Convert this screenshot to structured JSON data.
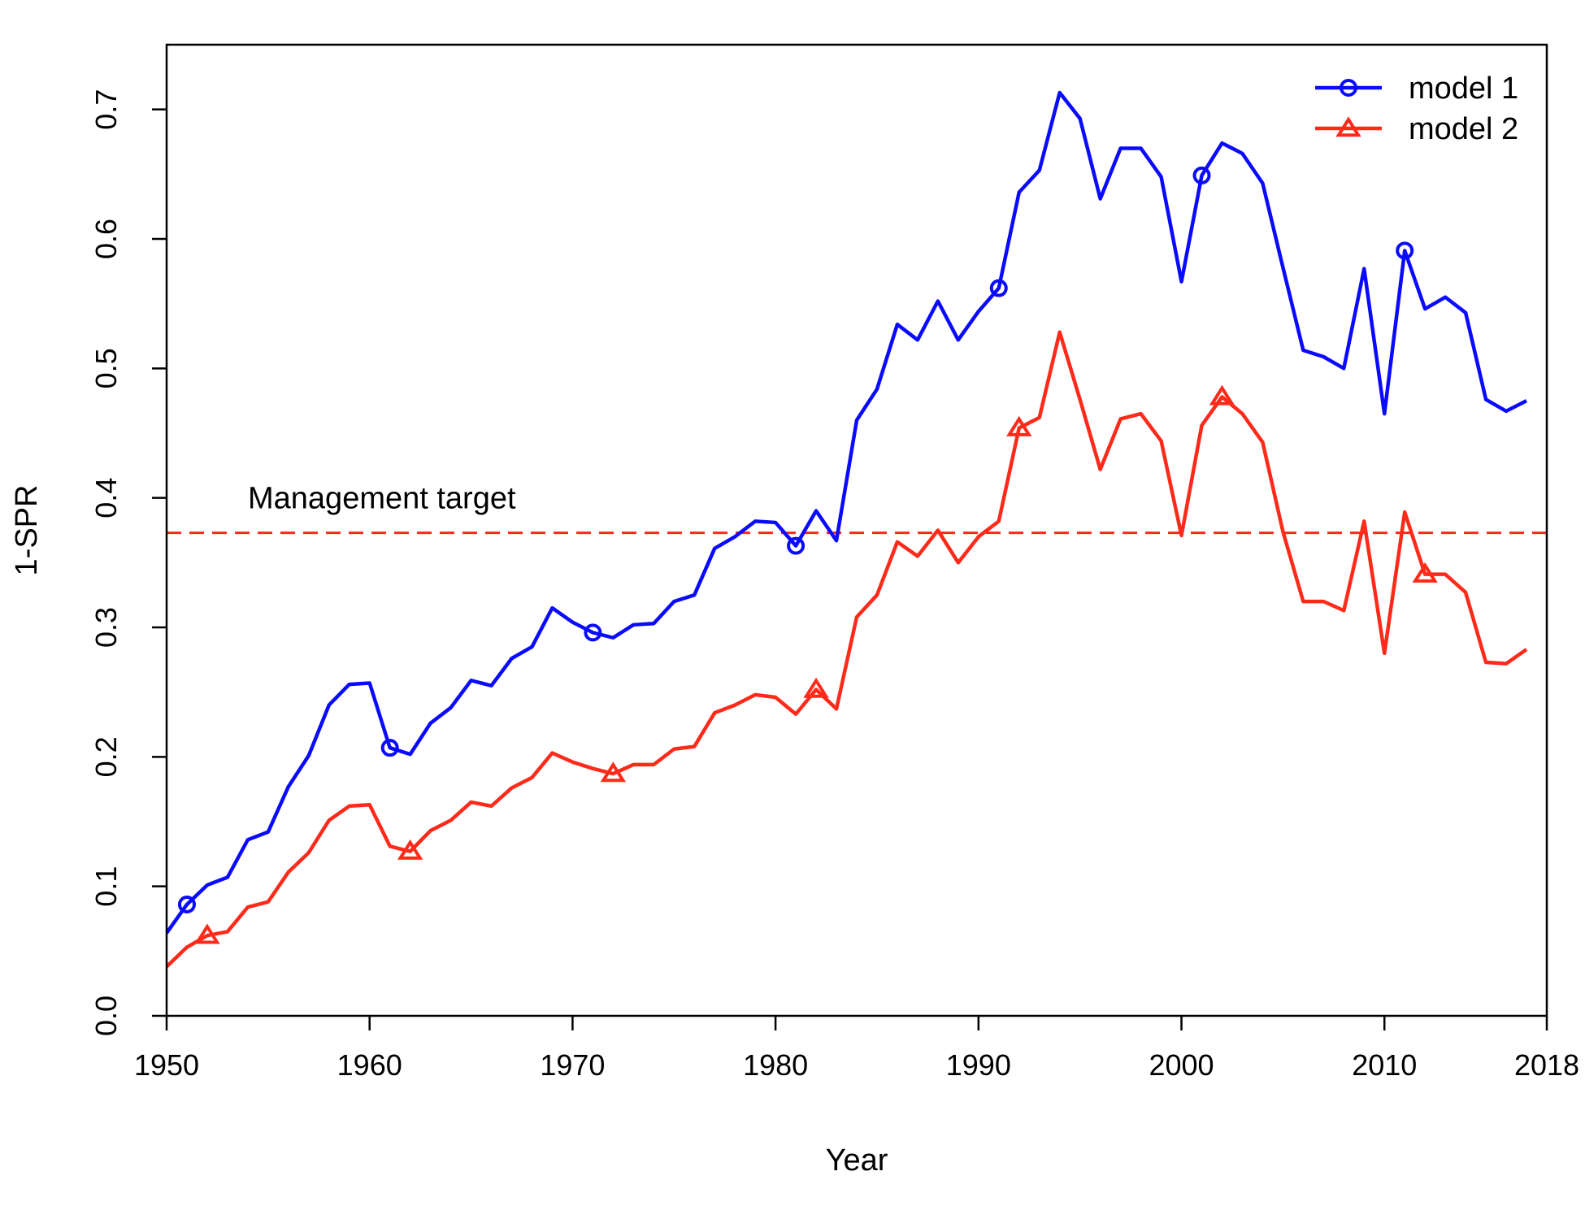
{
  "chart_data": {
    "type": "line",
    "title": "",
    "xlabel": "Year",
    "ylabel": "1-SPR",
    "xlim": [
      1950,
      2018
    ],
    "ylim": [
      0.0,
      0.75
    ],
    "x_ticks": [
      1950,
      1960,
      1970,
      1980,
      1990,
      2000,
      2010,
      2018
    ],
    "x_tick_labels": [
      "1950",
      "1960",
      "1970",
      "1980",
      "1990",
      "2000",
      "2010",
      "2018"
    ],
    "y_ticks": [
      0.0,
      0.1,
      0.2,
      0.3,
      0.4,
      0.5,
      0.6,
      0.7
    ],
    "y_tick_labels": [
      "0.0",
      "0.1",
      "0.2",
      "0.3",
      "0.4",
      "0.5",
      "0.6",
      "0.7"
    ],
    "grid": false,
    "legend": {
      "position": "top-right"
    },
    "reference_line": {
      "y": 0.373,
      "style": "dashed",
      "color": "#ff2a1a",
      "label": "Management target"
    },
    "series": [
      {
        "name": "model 1",
        "color": "#0a0aff",
        "marker": "circle",
        "x": [
          1950,
          1951,
          1952,
          1953,
          1954,
          1955,
          1956,
          1957,
          1958,
          1959,
          1960,
          1961,
          1962,
          1963,
          1964,
          1965,
          1966,
          1967,
          1968,
          1969,
          1970,
          1971,
          1972,
          1973,
          1974,
          1975,
          1976,
          1977,
          1978,
          1979,
          1980,
          1981,
          1982,
          1983,
          1984,
          1985,
          1986,
          1987,
          1988,
          1989,
          1990,
          1991,
          1992,
          1993,
          1994,
          1995,
          1996,
          1997,
          1998,
          1999,
          2000,
          2001,
          2002,
          2003,
          2004,
          2005,
          2006,
          2007,
          2008,
          2009,
          2010,
          2011,
          2012,
          2013,
          2014,
          2015,
          2016,
          2017
        ],
        "y": [
          0.064,
          0.086,
          0.101,
          0.107,
          0.136,
          0.142,
          0.177,
          0.201,
          0.24,
          0.256,
          0.257,
          0.207,
          0.202,
          0.226,
          0.238,
          0.259,
          0.255,
          0.276,
          0.285,
          0.315,
          0.304,
          0.296,
          0.292,
          0.302,
          0.303,
          0.32,
          0.325,
          0.361,
          0.37,
          0.382,
          0.381,
          0.363,
          0.39,
          0.367,
          0.46,
          0.484,
          0.534,
          0.522,
          0.552,
          0.522,
          0.544,
          0.562,
          0.636,
          0.653,
          0.713,
          0.693,
          0.631,
          0.67,
          0.67,
          0.648,
          0.567,
          0.649,
          0.674,
          0.666,
          0.643,
          0.578,
          0.514,
          0.509,
          0.5,
          0.577,
          0.465,
          0.591,
          0.546,
          0.555,
          0.543,
          0.476,
          0.467,
          0.475
        ],
        "marker_x": [
          1951,
          1961,
          1971,
          1981,
          1991,
          2001,
          2011
        ]
      },
      {
        "name": "model 2",
        "color": "#ff2a1a",
        "marker": "triangle",
        "x": [
          1950,
          1951,
          1952,
          1953,
          1954,
          1955,
          1956,
          1957,
          1958,
          1959,
          1960,
          1961,
          1962,
          1963,
          1964,
          1965,
          1966,
          1967,
          1968,
          1969,
          1970,
          1971,
          1972,
          1973,
          1974,
          1975,
          1976,
          1977,
          1978,
          1979,
          1980,
          1981,
          1982,
          1983,
          1984,
          1985,
          1986,
          1987,
          1988,
          1989,
          1990,
          1991,
          1992,
          1993,
          1994,
          1995,
          1996,
          1997,
          1998,
          1999,
          2000,
          2001,
          2002,
          2003,
          2004,
          2005,
          2006,
          2007,
          2008,
          2009,
          2010,
          2011,
          2012,
          2013,
          2014,
          2015,
          2016,
          2017
        ],
        "y": [
          0.038,
          0.053,
          0.062,
          0.065,
          0.084,
          0.088,
          0.111,
          0.126,
          0.151,
          0.162,
          0.163,
          0.131,
          0.127,
          0.143,
          0.151,
          0.165,
          0.162,
          0.176,
          0.184,
          0.203,
          0.196,
          0.191,
          0.187,
          0.194,
          0.194,
          0.206,
          0.208,
          0.234,
          0.24,
          0.248,
          0.246,
          0.233,
          0.252,
          0.237,
          0.308,
          0.325,
          0.366,
          0.355,
          0.375,
          0.35,
          0.37,
          0.382,
          0.454,
          0.462,
          0.528,
          0.476,
          0.422,
          0.461,
          0.465,
          0.444,
          0.371,
          0.456,
          0.478,
          0.465,
          0.443,
          0.374,
          0.32,
          0.32,
          0.313,
          0.382,
          0.28,
          0.389,
          0.341,
          0.341,
          0.327,
          0.273,
          0.272,
          0.283
        ],
        "marker_x": [
          1952,
          1962,
          1972,
          1982,
          1992,
          2002,
          2012
        ]
      }
    ]
  }
}
